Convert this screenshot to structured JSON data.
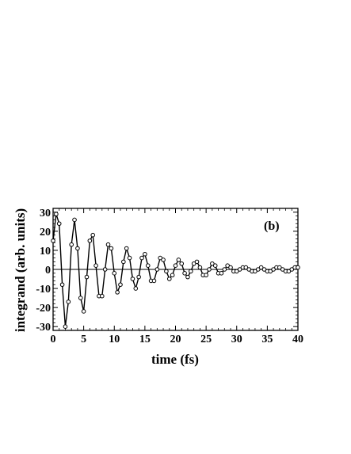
{
  "chart_data": {
    "type": "line",
    "title": "",
    "panel_label": "(b)",
    "xlabel": "time (fs)",
    "ylabel": "integrand (arb. units)",
    "xlim": [
      0,
      40
    ],
    "ylim": [
      -32,
      32
    ],
    "xticks": [
      0,
      5,
      10,
      15,
      20,
      25,
      30,
      35,
      40
    ],
    "yticks": [
      -30,
      -20,
      -10,
      0,
      10,
      20,
      30
    ],
    "grid": false,
    "zero_line": true,
    "legend": "none",
    "marker": "open-circle",
    "line_color": "#000000",
    "series": [
      {
        "x": [
          0.0,
          0.5,
          1.0,
          1.5,
          2.0,
          2.5,
          3.0,
          3.5,
          4.0,
          4.5,
          5.0,
          5.5,
          6.0,
          6.5,
          7.0,
          7.5,
          8.0,
          8.5,
          9.0,
          9.5,
          10.0,
          10.5,
          11.0,
          11.5,
          12.0,
          12.5,
          13.0,
          13.5,
          14.0,
          14.5,
          15.0,
          15.5,
          16.0,
          16.5,
          17.0,
          17.5,
          18.0,
          18.5,
          19.0,
          19.5,
          20.0,
          20.5,
          21.0,
          21.5,
          22.0,
          22.5,
          23.0,
          23.5,
          24.0,
          24.5,
          25.0,
          25.5,
          26.0,
          26.5,
          27.0,
          27.5,
          28.0,
          28.5,
          29.0,
          29.5,
          30.0,
          30.5,
          31.0,
          31.5,
          32.0,
          32.5,
          33.0,
          33.5,
          34.0,
          34.5,
          35.0,
          35.5,
          36.0,
          36.5,
          37.0,
          37.5,
          38.0,
          38.5,
          39.0,
          39.5,
          40.0
        ],
        "values": [
          15,
          29,
          24,
          -8,
          -30,
          -17,
          13,
          26,
          11,
          -15,
          -22,
          -4,
          15,
          18,
          2,
          -14,
          -14,
          0,
          13,
          11,
          -2,
          -12,
          -8,
          4,
          11,
          6,
          -5,
          -10,
          -4,
          6,
          8,
          2,
          -6,
          -6,
          0,
          6,
          5,
          -1,
          -5,
          -3,
          2,
          5,
          3,
          -2,
          -4,
          -1,
          3,
          4,
          1,
          -3,
          -3,
          0,
          3,
          2,
          -2,
          -2,
          0,
          2,
          1,
          -1,
          -1,
          0,
          1,
          1,
          0,
          -1,
          -1,
          0,
          1,
          0,
          -1,
          -1,
          0,
          1,
          1,
          0,
          -1,
          -1,
          0,
          1,
          1
        ]
      }
    ]
  }
}
